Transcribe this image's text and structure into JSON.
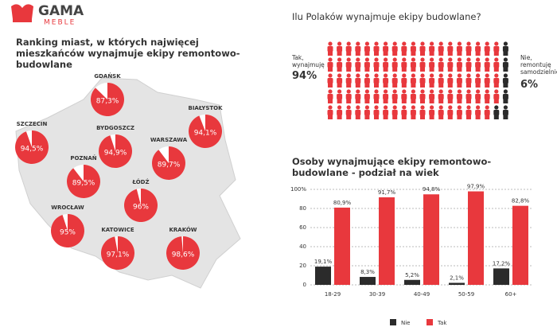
{
  "logo": {
    "name": "GAMA",
    "tagline": "MEBLE"
  },
  "chart_data": [
    {
      "type": "pie",
      "title": "Ranking miast, w których najwięcej mieszkańców wynajmuje ekipy remontowo-budowlane",
      "categories": [
        "GDAŃSK",
        "SZCZECIN",
        "BYDGOSZCZ",
        "BIAŁYSTOK",
        "POZNAŃ",
        "WARSZAWA",
        "ŁÓDŹ",
        "WROCŁAW",
        "KATOWICE",
        "KRAKÓW"
      ],
      "values": [
        87.3,
        94.5,
        94.9,
        94.1,
        89.5,
        89.7,
        96,
        95,
        97.1,
        98.6
      ],
      "value_labels": [
        "87,3%",
        "94,5%",
        "94,9%",
        "94,1%",
        "89,5%",
        "89,7%",
        "96%",
        "95%",
        "97,1%",
        "98,6%"
      ],
      "color": "#e8383d"
    },
    {
      "type": "waffle",
      "title": "Ilu Polaków wynajmuje ekipy budowlane?",
      "categories": [
        "Tak, wynajmuję",
        "Nie, remontuję samodzielnie"
      ],
      "values": [
        94,
        6
      ],
      "value_labels": [
        "94%",
        "6%"
      ],
      "colors": [
        "#e8383d",
        "#2b2b2b"
      ]
    },
    {
      "type": "bar",
      "title": "Osoby wynajmujące ekipy remontowo-budowlane - podział na wiek",
      "categories": [
        "18-29",
        "30-39",
        "40-49",
        "50-59",
        "60+"
      ],
      "series": [
        {
          "name": "Nie",
          "color": "#2b2b2b",
          "values": [
            19.1,
            8.3,
            5.2,
            2.1,
            17.2
          ],
          "value_labels": [
            "19,1%",
            "8,3%",
            "5,2%",
            "2,1%",
            "17,2%"
          ]
        },
        {
          "name": "Tak",
          "color": "#e8383d",
          "values": [
            80.9,
            91.7,
            94.8,
            97.9,
            82.8
          ],
          "value_labels": [
            "80,9%",
            "91,7%",
            "94,8%",
            "97,9%",
            "82,8%"
          ]
        }
      ],
      "ylim": [
        0,
        100
      ],
      "yticks": [
        0,
        20,
        40,
        60,
        80,
        {
          "value": 100,
          "label": "100%"
        }
      ],
      "grid": true,
      "legend": "bottom"
    }
  ]
}
